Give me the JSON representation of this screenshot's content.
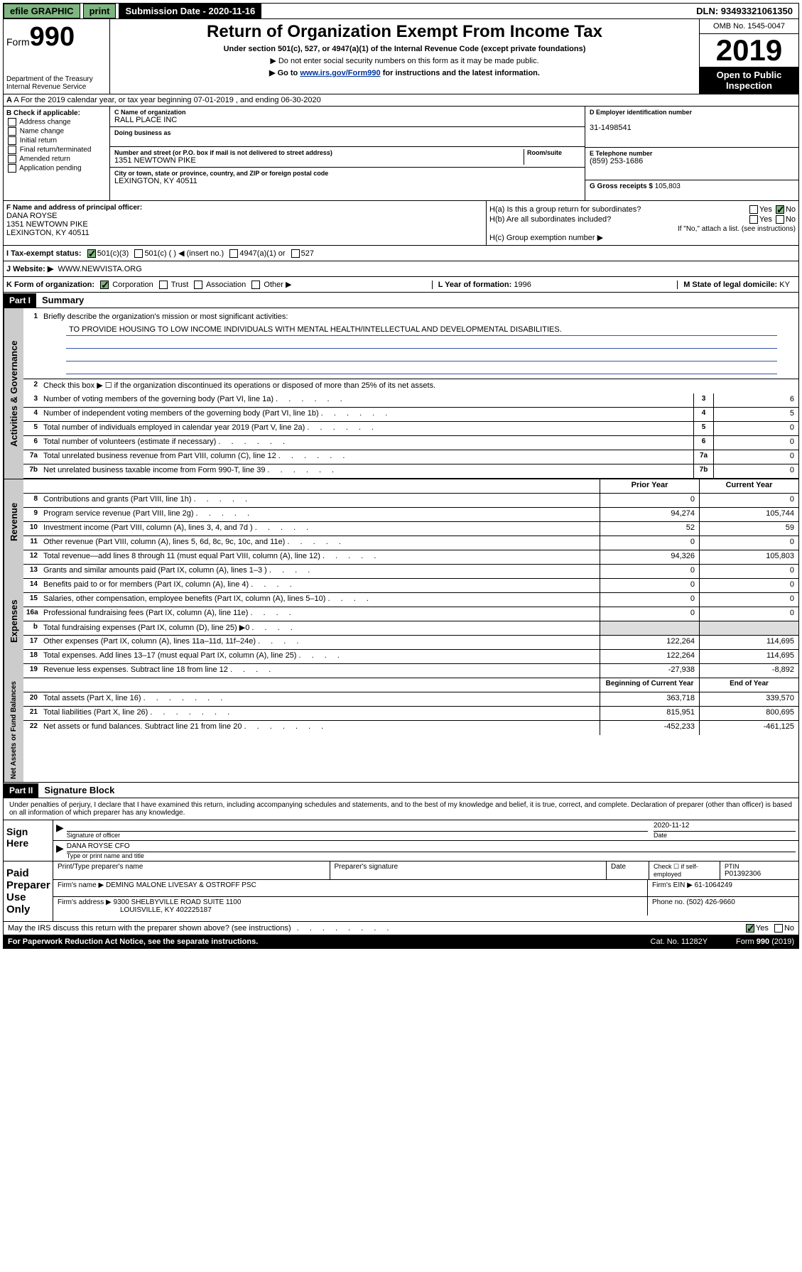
{
  "topbar": {
    "efile": "efile GRAPHIC",
    "print": "print",
    "subdate_label": "Submission Date - 2020-11-16",
    "dln": "DLN: 93493321061350"
  },
  "header": {
    "form_prefix": "Form",
    "form_number": "990",
    "dept": "Department of the Treasury\nInternal Revenue Service",
    "title": "Return of Organization Exempt From Income Tax",
    "sub1": "Under section 501(c), 527, or 4947(a)(1) of the Internal Revenue Code (except private foundations)",
    "sub2": "▶ Do not enter social security numbers on this form as it may be made public.",
    "sub3_pre": "▶ Go to ",
    "sub3_link": "www.irs.gov/Form990",
    "sub3_post": " for instructions and the latest information.",
    "omb": "OMB No. 1545-0047",
    "year": "2019",
    "open": "Open to Public Inspection"
  },
  "row_a": "A For the 2019 calendar year, or tax year beginning 07-01-2019   , and ending 06-30-2020",
  "col_b": {
    "label": "B Check if applicable:",
    "items": [
      "Address change",
      "Name change",
      "Initial return",
      "Final return/terminated",
      "Amended return",
      "Application pending"
    ]
  },
  "col_c": {
    "name_label": "C Name of organization",
    "name": "RALL PLACE INC",
    "dba_label": "Doing business as",
    "dba": "",
    "addr_label": "Number and street (or P.O. box if mail is not delivered to street address)",
    "addr": "1351 NEWTOWN PIKE",
    "room_label": "Room/suite",
    "city_label": "City or town, state or province, country, and ZIP or foreign postal code",
    "city": "LEXINGTON, KY  40511"
  },
  "col_d": {
    "ein_label": "D Employer identification number",
    "ein": "31-1498541",
    "tel_label": "E Telephone number",
    "tel": "(859) 253-1686",
    "gross_label": "G Gross receipts $",
    "gross": "105,803"
  },
  "row_f": {
    "label": "F  Name and address of principal officer:",
    "name": "DANA ROYSE",
    "addr1": "1351 NEWTOWN PIKE",
    "addr2": "LEXINGTON, KY  40511"
  },
  "row_h": {
    "ha": "H(a)  Is this a group return for subordinates?",
    "hb": "H(b)  Are all subordinates included?",
    "hb_note": "If \"No,\" attach a list. (see instructions)",
    "hc": "H(c)  Group exemption number ▶"
  },
  "row_i": {
    "label": "I   Tax-exempt status:",
    "opts": [
      "501(c)(3)",
      "501(c) (  ) ◀ (insert no.)",
      "4947(a)(1) or",
      "527"
    ]
  },
  "row_j": {
    "label": "J   Website: ▶",
    "value": "WWW.NEWVISTA.ORG"
  },
  "row_k": {
    "label": "K Form of organization:",
    "opts": [
      "Corporation",
      "Trust",
      "Association",
      "Other ▶"
    ],
    "year_label": "L Year of formation:",
    "year": "1996",
    "state_label": "M State of legal domicile:",
    "state": "KY"
  },
  "part1": {
    "hdr": "Part I",
    "title": "Summary"
  },
  "governance": {
    "sidebar": "Activities & Governance",
    "l1_label": "Briefly describe the organization's mission or most significant activities:",
    "l1_text": "TO PROVIDE HOUSING TO LOW INCOME INDIVIDUALS WITH MENTAL HEALTH/INTELLECTUAL AND DEVELOPMENTAL DISABILITIES.",
    "l2": "Check this box ▶ ☐  if the organization discontinued its operations or disposed of more than 25% of its net assets.",
    "rows": [
      {
        "n": "3",
        "t": "Number of voting members of the governing body (Part VI, line 1a)",
        "box": "3",
        "v": "6"
      },
      {
        "n": "4",
        "t": "Number of independent voting members of the governing body (Part VI, line 1b)",
        "box": "4",
        "v": "5"
      },
      {
        "n": "5",
        "t": "Total number of individuals employed in calendar year 2019 (Part V, line 2a)",
        "box": "5",
        "v": "0"
      },
      {
        "n": "6",
        "t": "Total number of volunteers (estimate if necessary)",
        "box": "6",
        "v": "0"
      },
      {
        "n": "7a",
        "t": "Total unrelated business revenue from Part VIII, column (C), line 12",
        "box": "7a",
        "v": "0"
      },
      {
        "n": "7b",
        "t": "Net unrelated business taxable income from Form 990-T, line 39",
        "box": "7b",
        "v": "0"
      }
    ]
  },
  "revenue": {
    "sidebar": "Revenue",
    "col1": "Prior Year",
    "col2": "Current Year",
    "rows": [
      {
        "n": "8",
        "t": "Contributions and grants (Part VIII, line 1h)",
        "v1": "0",
        "v2": "0"
      },
      {
        "n": "9",
        "t": "Program service revenue (Part VIII, line 2g)",
        "v1": "94,274",
        "v2": "105,744"
      },
      {
        "n": "10",
        "t": "Investment income (Part VIII, column (A), lines 3, 4, and 7d )",
        "v1": "52",
        "v2": "59"
      },
      {
        "n": "11",
        "t": "Other revenue (Part VIII, column (A), lines 5, 6d, 8c, 9c, 10c, and 11e)",
        "v1": "0",
        "v2": "0"
      },
      {
        "n": "12",
        "t": "Total revenue—add lines 8 through 11 (must equal Part VIII, column (A), line 12)",
        "v1": "94,326",
        "v2": "105,803"
      }
    ]
  },
  "expenses": {
    "sidebar": "Expenses",
    "rows": [
      {
        "n": "13",
        "t": "Grants and similar amounts paid (Part IX, column (A), lines 1–3 )",
        "v1": "0",
        "v2": "0"
      },
      {
        "n": "14",
        "t": "Benefits paid to or for members (Part IX, column (A), line 4)",
        "v1": "0",
        "v2": "0"
      },
      {
        "n": "15",
        "t": "Salaries, other compensation, employee benefits (Part IX, column (A), lines 5–10)",
        "v1": "0",
        "v2": "0"
      },
      {
        "n": "16a",
        "t": "Professional fundraising fees (Part IX, column (A), line 11e)",
        "v1": "0",
        "v2": "0"
      },
      {
        "n": "b",
        "t": "Total fundraising expenses (Part IX, column (D), line 25) ▶0",
        "v1": "",
        "v2": "",
        "shaded": true
      },
      {
        "n": "17",
        "t": "Other expenses (Part IX, column (A), lines 11a–11d, 11f–24e)",
        "v1": "122,264",
        "v2": "114,695"
      },
      {
        "n": "18",
        "t": "Total expenses. Add lines 13–17 (must equal Part IX, column (A), line 25)",
        "v1": "122,264",
        "v2": "114,695"
      },
      {
        "n": "19",
        "t": "Revenue less expenses. Subtract line 18 from line 12",
        "v1": "-27,938",
        "v2": "-8,892"
      }
    ]
  },
  "netassets": {
    "sidebar": "Net Assets or Fund Balances",
    "col1": "Beginning of Current Year",
    "col2": "End of Year",
    "rows": [
      {
        "n": "20",
        "t": "Total assets (Part X, line 16)",
        "v1": "363,718",
        "v2": "339,570"
      },
      {
        "n": "21",
        "t": "Total liabilities (Part X, line 26)",
        "v1": "815,951",
        "v2": "800,695"
      },
      {
        "n": "22",
        "t": "Net assets or fund balances. Subtract line 21 from line 20",
        "v1": "-452,233",
        "v2": "-461,125"
      }
    ]
  },
  "part2": {
    "hdr": "Part II",
    "title": "Signature Block",
    "declare": "Under penalties of perjury, I declare that I have examined this return, including accompanying schedules and statements, and to the best of my knowledge and belief, it is true, correct, and complete. Declaration of preparer (other than officer) is based on all information of which preparer has any knowledge."
  },
  "sign": {
    "left": "Sign Here",
    "sig_label": "Signature of officer",
    "date": "2020-11-12",
    "date_label": "Date",
    "name": "DANA ROYSE CFO",
    "name_label": "Type or print name and title"
  },
  "paid": {
    "left": "Paid Preparer Use Only",
    "h1": "Print/Type preparer's name",
    "h2": "Preparer's signature",
    "h3": "Date",
    "h4_a": "Check ☐ if self-employed",
    "h5": "PTIN",
    "ptin": "P01392306",
    "firm_label": "Firm's name    ▶",
    "firm": "DEMING MALONE LIVESAY & OSTROFF PSC",
    "ein_label": "Firm's EIN ▶",
    "ein": "61-1064249",
    "addr_label": "Firm's address ▶",
    "addr1": "9300 SHELBYVILLE ROAD SUITE 1100",
    "addr2": "LOUISVILLE, KY  402225187",
    "phone_label": "Phone no.",
    "phone": "(502) 426-9660"
  },
  "footer": {
    "discuss": "May the IRS discuss this return with the preparer shown above? (see instructions)",
    "paperwork": "For Paperwork Reduction Act Notice, see the separate instructions.",
    "cat": "Cat. No. 11282Y",
    "form": "Form 990 (2019)"
  }
}
